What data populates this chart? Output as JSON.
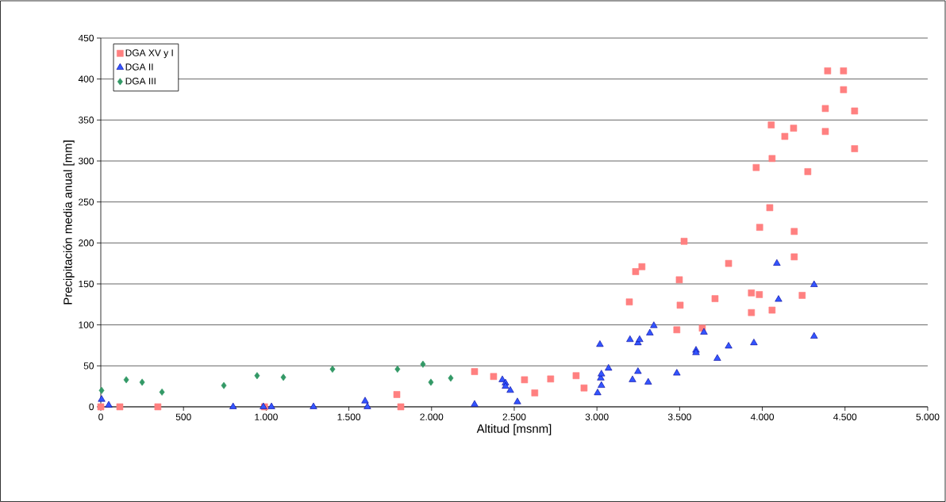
{
  "chart_data": {
    "type": "scatter",
    "xlabel": "Altitud [msnm]",
    "ylabel": "Precipitación media anual [mm]",
    "xlim": [
      0,
      5000
    ],
    "xticks": [
      0,
      500,
      {
        "value": 1000,
        "label": "1.000"
      },
      {
        "value": 1500,
        "label": "1.500"
      },
      {
        "value": 2000,
        "label": "2.000"
      },
      {
        "value": 2500,
        "label": "2.500"
      },
      {
        "value": 3000,
        "label": "3.000"
      },
      {
        "value": 3500,
        "label": "3.500"
      },
      {
        "value": 4000,
        "label": "4.000"
      },
      {
        "value": 4500,
        "label": "4.500"
      },
      {
        "value": 5000,
        "label": "5.000"
      }
    ],
    "ylim": [
      0,
      450
    ],
    "yticks": [
      0,
      50,
      100,
      150,
      200,
      250,
      300,
      350,
      400,
      450
    ],
    "grid": "y",
    "legend": "top left",
    "series": [
      {
        "name": "DGA XV y I",
        "color": "#ff8080",
        "marker": "square",
        "x": [
          0,
          115,
          345,
          990,
          1790,
          1814,
          2260,
          2375,
          2562,
          2624,
          2720,
          2874,
          2922,
          3196,
          3234,
          3272,
          3483,
          3498,
          3503,
          3527,
          3637,
          3714,
          3796,
          3934,
          3934,
          3963,
          3982,
          3984,
          4045,
          4054,
          4059,
          4059,
          4136,
          4189,
          4193,
          4193,
          4241,
          4275,
          4381,
          4381,
          4395,
          4491,
          4491,
          4558,
          4558
        ],
        "values": [
          0,
          0,
          0,
          0,
          15,
          0,
          43,
          37,
          33,
          17,
          34,
          38,
          23,
          128,
          165,
          171,
          94,
          155,
          124,
          202,
          96,
          132,
          175,
          139,
          115,
          292,
          137,
          219,
          243,
          344,
          118,
          303,
          330,
          340,
          214,
          183,
          136,
          287,
          364,
          336,
          410,
          410,
          387,
          361,
          315
        ]
      },
      {
        "name": "DGA II",
        "color": "#3355ff",
        "marker": "triangle",
        "x": [
          5,
          48,
          800,
          983,
          1032,
          1286,
          1598,
          1612,
          2260,
          2428,
          2447,
          2447,
          2476,
          2519,
          3004,
          3018,
          3023,
          3027,
          3027,
          3070,
          3200,
          3215,
          3248,
          3248,
          3258,
          3310,
          3320,
          3344,
          3483,
          3599,
          3599,
          3647,
          3728,
          3796,
          3949,
          4088,
          4098,
          4313,
          4313
        ],
        "values": [
          9,
          2,
          0,
          0,
          0,
          0,
          7,
          0,
          3,
          33,
          29,
          25,
          20,
          6,
          17,
          76,
          35,
          40,
          26,
          47,
          82,
          33,
          78,
          43,
          82,
          30,
          90,
          99,
          41,
          69,
          66,
          91,
          59,
          74,
          78,
          175,
          131,
          149,
          86
        ]
      },
      {
        "name": "DGA III",
        "color": "#339966",
        "marker": "diamond",
        "x": [
          5,
          154,
          250,
          370,
          744,
          945,
          1104,
          1401,
          1794,
          1948,
          1996,
          2116
        ],
        "values": [
          20,
          33,
          30,
          18,
          26,
          38,
          36,
          46,
          46,
          52,
          30,
          35
        ]
      }
    ]
  }
}
